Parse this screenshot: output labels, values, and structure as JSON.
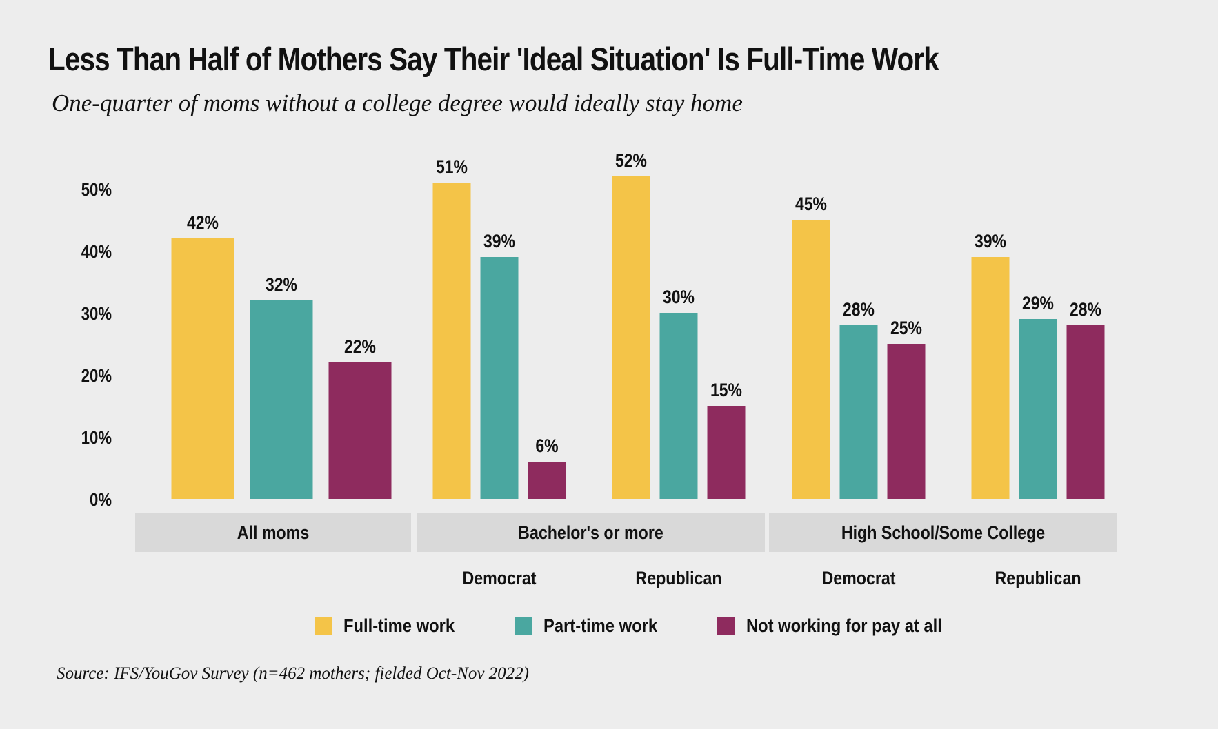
{
  "header": {
    "title": "Less Than Half of Mothers Say Their 'Ideal Situation' Is Full-Time Work",
    "subtitle": "One-quarter of moms without a college degree would ideally stay home"
  },
  "footer": {
    "source": "Source: IFS/YouGov Survey (n=462 mothers; fielded Oct-Nov 2022)"
  },
  "chart_data": {
    "type": "bar",
    "title": "Less Than Half of Mothers Say Their 'Ideal Situation' Is Full-Time Work",
    "ylabel": "",
    "xlabel": "",
    "ylim": [
      0,
      50
    ],
    "yticks": [
      "0%",
      "10%",
      "20%",
      "30%",
      "40%",
      "50%"
    ],
    "ytick_values": [
      0,
      10,
      20,
      30,
      40,
      50
    ],
    "grid": false,
    "legend_position": "bottom",
    "panels": [
      {
        "label": "All moms",
        "groups": [
          {
            "name": "",
            "values": [
              42,
              32,
              22
            ]
          }
        ]
      },
      {
        "label": "Bachelor's or more",
        "groups": [
          {
            "name": "Democrat",
            "values": [
              51,
              39,
              6
            ]
          },
          {
            "name": "Republican",
            "values": [
              52,
              30,
              15
            ]
          }
        ]
      },
      {
        "label": "High School/Some College",
        "groups": [
          {
            "name": "Democrat",
            "values": [
              45,
              28,
              25
            ]
          },
          {
            "name": "Republican",
            "values": [
              39,
              29,
              28
            ]
          }
        ]
      }
    ],
    "series": [
      {
        "name": "Full-time work",
        "color": "#f4c448"
      },
      {
        "name": "Part-time work",
        "color": "#4aa7a0"
      },
      {
        "name": "Not working for pay at all",
        "color": "#8e2b5e"
      }
    ],
    "value_suffix": "%"
  },
  "colors": {
    "background": "#ededed",
    "strip": "#d9d9d9",
    "text": "#111111"
  }
}
